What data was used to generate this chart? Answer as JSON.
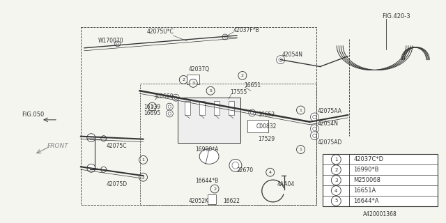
{
  "background_color": "#f5f5f0",
  "line_color": "#333333",
  "fig_width": 6.4,
  "fig_height": 3.2,
  "dpi": 100,
  "legend_items": [
    {
      "num": "1",
      "code": "42037C*D"
    },
    {
      "num": "2",
      "code": "16990*B"
    },
    {
      "num": "3",
      "code": "M250068"
    },
    {
      "num": "4",
      "code": "16651A"
    },
    {
      "num": "5",
      "code": "16644*A"
    }
  ],
  "part_number": "A420001368",
  "fig_ref_top_right": "FIG.420-3",
  "fig_ref_left": "FIG.050",
  "front_label": "FRONT"
}
